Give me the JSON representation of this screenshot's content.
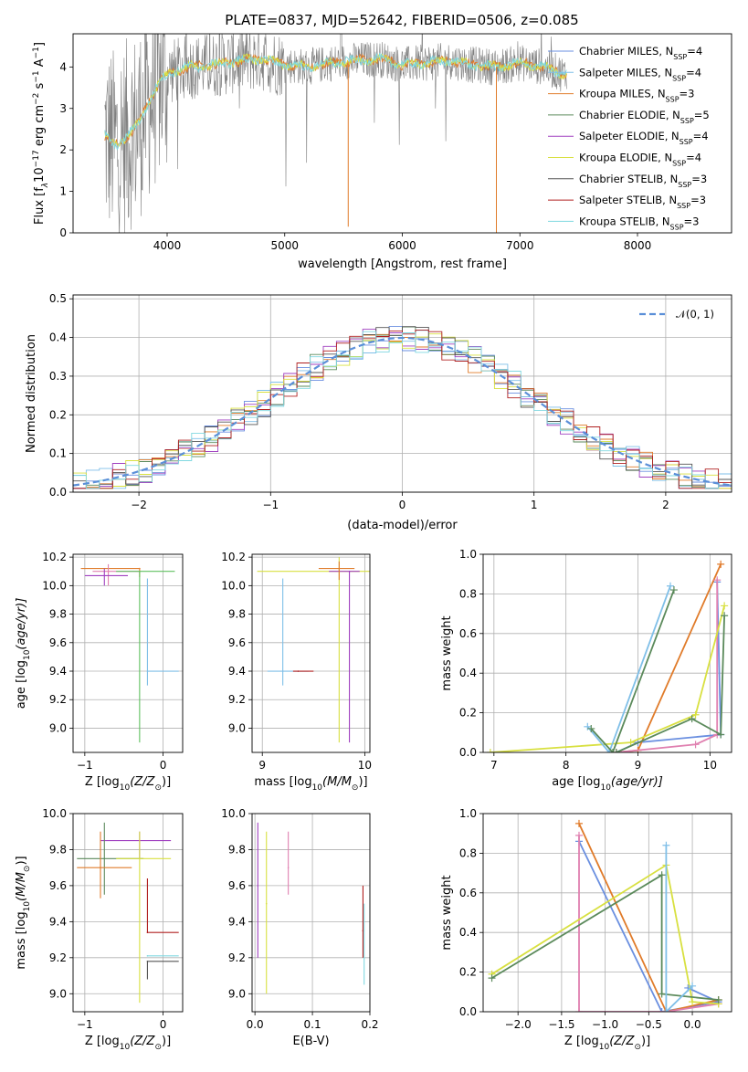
{
  "figure_title": "PLATE=0837, MJD=52642, FIBERID=0506, z=0.085",
  "palette": {
    "chabrier_miles": "#6a8fe0",
    "salpeter_miles": "#7fbfe8",
    "kroupa_miles": "#e07b2a",
    "chabrier_elodie": "#5b8a5b",
    "salpeter_elodie": "#a040c0",
    "kroupa_elodie": "#d8e040",
    "chabrier_stelib": "#555555",
    "salpeter_stelib": "#b02020",
    "kroupa_stelib": "#80d8e0",
    "data_grey": "#808080",
    "gaussian": "#5b8fd8",
    "pink": "#e080b0",
    "green2": "#60c060",
    "grid": "#b0b0b0"
  },
  "chart_data": [
    {
      "id": "spectrum",
      "type": "line",
      "title": "PLATE=0837, MJD=52642, FIBERID=0506, z=0.085",
      "xlabel": "wavelength [Angstrom, rest frame]",
      "ylabel_main": "Flux [f",
      "ylabel_sub_lambda": "λ",
      "ylabel_rest": "10",
      "ylabel_exp": "−17",
      "ylabel_units": " erg cm",
      "ylabel_exp2": "−2",
      "ylabel_s": " s",
      "ylabel_exp3": "−1",
      "ylabel_A": " A",
      "ylabel_exp4": "−1",
      "ylabel_close": "]",
      "xlim": [
        3200,
        8800
      ],
      "ylim": [
        0,
        4.8
      ],
      "xticks": [
        4000,
        5000,
        6000,
        7000,
        8000
      ],
      "yticks": [
        0,
        1,
        2,
        3,
        4
      ],
      "continuum": {
        "x": [
          3450,
          3550,
          3650,
          3750,
          3850,
          3950,
          4050,
          4200,
          4400,
          4600,
          4800,
          5000,
          5200,
          5400,
          5600,
          5800,
          6000,
          6200,
          6400,
          6600,
          6800,
          7000,
          7200,
          7400
        ],
        "y": [
          2.4,
          2.1,
          2.3,
          2.6,
          3.2,
          3.7,
          3.9,
          4.0,
          4.05,
          4.15,
          4.2,
          4.05,
          4.0,
          4.1,
          4.15,
          4.2,
          4.05,
          4.1,
          4.15,
          4.05,
          4.0,
          4.1,
          4.0,
          3.8
        ]
      },
      "legend": [
        {
          "name": "Chabrier MILES, N",
          "sub": "SSP",
          "tail": "=4",
          "color_key": "chabrier_miles"
        },
        {
          "name": "Salpeter MILES, N",
          "sub": "SSP",
          "tail": "=4",
          "color_key": "salpeter_miles"
        },
        {
          "name": "Kroupa MILES, N",
          "sub": "SSP",
          "tail": "=3",
          "color_key": "kroupa_miles"
        },
        {
          "name": "Chabrier ELODIE, N",
          "sub": "SSP",
          "tail": "=5",
          "color_key": "chabrier_elodie"
        },
        {
          "name": "Salpeter ELODIE, N",
          "sub": "SSP",
          "tail": "=4",
          "color_key": "salpeter_elodie"
        },
        {
          "name": "Kroupa ELODIE, N",
          "sub": "SSP",
          "tail": "=4",
          "color_key": "kroupa_elodie"
        },
        {
          "name": "Chabrier STELIB, N",
          "sub": "SSP",
          "tail": "=3",
          "color_key": "chabrier_stelib"
        },
        {
          "name": "Salpeter STELIB, N",
          "sub": "SSP",
          "tail": "=3",
          "color_key": "salpeter_stelib"
        },
        {
          "name": "Kroupa STELIB, N",
          "sub": "SSP",
          "tail": "=3",
          "color_key": "kroupa_stelib"
        }
      ]
    },
    {
      "id": "residuals",
      "type": "line",
      "xlabel": "(data-model)/error",
      "ylabel": "Normed distribution",
      "xlim": [
        -2.5,
        2.5
      ],
      "ylim": [
        0,
        0.51
      ],
      "xticks": [
        -2,
        -1,
        0,
        1,
        2
      ],
      "xtick_labels": [
        "−2",
        "−1",
        "0",
        "1",
        "2"
      ],
      "yticks": [
        0.0,
        0.1,
        0.2,
        0.3,
        0.4,
        0.5
      ],
      "ytick_labels": [
        "0.0",
        "0.1",
        "0.2",
        "0.3",
        "0.4",
        "0.5"
      ],
      "grid": true,
      "legend_label": "𝒩(0, 1)",
      "legend_position": "top-right",
      "hist_bin_width": 0.1
    },
    {
      "id": "age_vs_Z",
      "type": "scatter",
      "xlabel": "Z [log",
      "xlabel_sub": "10",
      "xlabel_rest": "(Z/Z",
      "xlabel_sun": "⊙",
      "xlabel_close": ")]",
      "ylabel": "age  [log",
      "ylabel_sub": "10",
      "ylabel_rest": "(age/yr)]",
      "xlim": [
        -1.15,
        0.25
      ],
      "ylim": [
        8.83,
        10.22
      ],
      "xticks": [
        -1,
        0
      ],
      "xtick_labels": [
        "−1",
        "0"
      ],
      "yticks": [
        9.0,
        9.2,
        9.4,
        9.6,
        9.8,
        10.0,
        10.2
      ],
      "ytick_labels": [
        "9.0",
        "9.2",
        "9.4",
        "9.6",
        "9.8",
        "10.0",
        "10.2"
      ],
      "points": [
        {
          "x": -0.3,
          "y": 10.12,
          "xerr": [
            0.75,
            0.0
          ],
          "yerr": [
            0.06,
            0.0
          ],
          "color_key": "kroupa_miles"
        },
        {
          "x": -0.7,
          "y": 10.1,
          "xerr": [
            0.2,
            0.4
          ],
          "yerr": [
            0.1,
            0.05
          ],
          "color_key": "pink"
        },
        {
          "x": -0.3,
          "y": 10.1,
          "xerr": [
            0.3,
            0.45
          ],
          "yerr": [
            1.2,
            0.0
          ],
          "color_key": "green2"
        },
        {
          "x": -0.2,
          "y": 9.4,
          "xerr": [
            0.0,
            0.4
          ],
          "yerr": [
            0.1,
            0.65
          ],
          "color_key": "salpeter_miles"
        },
        {
          "x": -0.75,
          "y": 10.07,
          "xerr": [
            0.25,
            0.3
          ],
          "yerr": [
            0.07,
            0.05
          ],
          "color_key": "salpeter_elodie"
        }
      ]
    },
    {
      "id": "age_vs_mass",
      "type": "scatter",
      "xlabel": "mass [log",
      "xlabel_sub": "10",
      "xlabel_rest": "(M/M",
      "xlabel_sun": "⊙",
      "xlabel_close": ")]",
      "xlim": [
        8.9,
        10.05
      ],
      "ylim": [
        8.83,
        10.22
      ],
      "xticks": [
        9,
        10
      ],
      "xtick_labels": [
        "9",
        "10"
      ],
      "yticks": [
        9.0,
        9.2,
        9.4,
        9.6,
        9.8,
        10.0,
        10.2
      ],
      "ytick_labels": [
        "9.0",
        "9.2",
        "9.4",
        "9.6",
        "9.8",
        "10.0",
        "10.2"
      ],
      "points": [
        {
          "x": 9.2,
          "y": 9.4,
          "xerr": [
            0.15,
            0.25
          ],
          "yerr": [
            0.1,
            0.65
          ],
          "color_key": "salpeter_miles"
        },
        {
          "x": 9.35,
          "y": 9.4,
          "xerr": [
            0.05,
            0.15
          ],
          "yerr": [
            0.0,
            0.0
          ],
          "color_key": "salpeter_stelib"
        },
        {
          "x": 9.75,
          "y": 10.1,
          "xerr": [
            0.8,
            0.3
          ],
          "yerr": [
            1.2,
            0.1
          ],
          "color_key": "kroupa_elodie"
        },
        {
          "x": 9.85,
          "y": 10.1,
          "xerr": [
            0.2,
            0.1
          ],
          "yerr": [
            1.2,
            0.0
          ],
          "color_key": "salpeter_elodie"
        },
        {
          "x": 9.75,
          "y": 10.12,
          "xerr": [
            0.2,
            0.15
          ],
          "yerr": [
            0.08,
            0.05
          ],
          "color_key": "kroupa_miles"
        }
      ]
    },
    {
      "id": "weight_vs_age",
      "type": "line",
      "xlabel": "age  [log",
      "xlabel_sub": "10",
      "xlabel_rest": "(age/yr)]",
      "ylabel": "mass weight",
      "xlim": [
        6.85,
        10.3
      ],
      "ylim": [
        0,
        1.0
      ],
      "xticks": [
        7,
        8,
        9,
        10
      ],
      "xtick_labels": [
        "7",
        "8",
        "9",
        "10"
      ],
      "yticks": [
        0.0,
        0.2,
        0.4,
        0.6,
        0.8,
        1.0
      ],
      "ytick_labels": [
        "0.0",
        "0.2",
        "0.4",
        "0.6",
        "0.8",
        "1.0"
      ],
      "series": [
        {
          "color_key": "chabrier_miles",
          "x": [
            8.7,
            9.0,
            10.15,
            10.1
          ],
          "y": [
            0.0,
            0.05,
            0.09,
            0.86
          ]
        },
        {
          "color_key": "kroupa_miles",
          "x": [
            8.7,
            9.0,
            10.15
          ],
          "y": [
            0.0,
            0.01,
            0.95
          ]
        },
        {
          "color_key": "pink",
          "x": [
            8.7,
            9.8,
            10.1,
            10.1
          ],
          "y": [
            0.0,
            0.04,
            0.09,
            0.87
          ]
        },
        {
          "color_key": "kroupa_elodie",
          "x": [
            6.95,
            8.9,
            9.8,
            10.2
          ],
          "y": [
            0.0,
            0.05,
            0.19,
            0.74
          ]
        },
        {
          "color_key": "chabrier_elodie",
          "x": [
            8.7,
            9.75,
            10.15,
            10.2
          ],
          "y": [
            0.0,
            0.17,
            0.09,
            0.69
          ]
        },
        {
          "color_key": "salpeter_miles",
          "x": [
            8.3,
            8.6,
            9.45
          ],
          "y": [
            0.13,
            0.0,
            0.84
          ]
        },
        {
          "color_key": "chabrier_elodie",
          "x": [
            8.35,
            8.65,
            9.5
          ],
          "y": [
            0.12,
            0.0,
            0.82
          ]
        }
      ]
    },
    {
      "id": "mass_vs_Z",
      "type": "scatter",
      "xlabel": "Z [log",
      "xlabel_sub": "10",
      "xlabel_rest": "(Z/Z",
      "xlabel_sun": "⊙",
      "xlabel_close": ")]",
      "ylabel": "mass [log",
      "ylabel_sub": "10",
      "ylabel_rest": "(M/M",
      "ylabel_sun": "⊙",
      "ylabel_close": ")]",
      "xlim": [
        -1.15,
        0.25
      ],
      "ylim": [
        8.9,
        10.0
      ],
      "xticks": [
        -1,
        0
      ],
      "xtick_labels": [
        "−1",
        "0"
      ],
      "yticks": [
        9.0,
        9.2,
        9.4,
        9.6,
        9.8,
        10.0
      ],
      "ytick_labels": [
        "9.0",
        "9.2",
        "9.4",
        "9.6",
        "9.8",
        "10.0"
      ],
      "points": [
        {
          "x": -0.3,
          "y": 9.85,
          "xerr": [
            0.5,
            0.4
          ],
          "yerr": [
            0.1,
            0.05
          ],
          "color_key": "salpeter_elodie"
        },
        {
          "x": -0.75,
          "y": 9.75,
          "xerr": [
            0.35,
            0.5
          ],
          "yerr": [
            0.2,
            0.2
          ],
          "color_key": "chabrier_elodie"
        },
        {
          "x": -0.3,
          "y": 9.75,
          "xerr": [
            0.3,
            0.4
          ],
          "yerr": [
            0.8,
            0.15
          ],
          "color_key": "kroupa_elodie"
        },
        {
          "x": -0.8,
          "y": 9.7,
          "xerr": [
            0.3,
            0.4
          ],
          "yerr": [
            0.17,
            0.2
          ],
          "color_key": "kroupa_miles"
        },
        {
          "x": -0.2,
          "y": 9.34,
          "xerr": [
            0.0,
            0.4
          ],
          "yerr": [
            0.0,
            0.3
          ],
          "color_key": "salpeter_stelib"
        },
        {
          "x": -0.2,
          "y": 9.21,
          "xerr": [
            0.0,
            0.4
          ],
          "yerr": [
            0.0,
            0.0
          ],
          "color_key": "kroupa_stelib"
        },
        {
          "x": -0.2,
          "y": 9.18,
          "xerr": [
            0.0,
            0.4
          ],
          "yerr": [
            0.1,
            0.0
          ],
          "color_key": "chabrier_stelib"
        }
      ]
    },
    {
      "id": "mass_vs_ebv",
      "type": "scatter",
      "xlabel": "E(B-V)",
      "xlim": [
        -0.005,
        0.2
      ],
      "ylim": [
        8.9,
        10.0
      ],
      "xticks": [
        0.0,
        0.1,
        0.2
      ],
      "xtick_labels": [
        "0.0",
        "0.1",
        "0.2"
      ],
      "yticks": [
        9.0,
        9.2,
        9.4,
        9.6,
        9.8,
        10.0
      ],
      "ytick_labels": [
        "9.0",
        "9.2",
        "9.4",
        "9.6",
        "9.8",
        "10.0"
      ],
      "points": [
        {
          "x": 0.005,
          "y": 9.6,
          "yerr": [
            0.4,
            0.35
          ],
          "color_key": "salpeter_elodie"
        },
        {
          "x": 0.02,
          "y": 9.5,
          "yerr": [
            0.5,
            0.4
          ],
          "color_key": "kroupa_elodie"
        },
        {
          "x": 0.058,
          "y": 9.7,
          "yerr": [
            0.15,
            0.2
          ],
          "color_key": "pink"
        },
        {
          "x": 0.188,
          "y": 9.35,
          "yerr": [
            0.15,
            0.25
          ],
          "color_key": "salpeter_stelib"
        },
        {
          "x": 0.19,
          "y": 9.2,
          "yerr": [
            0.15,
            0.3
          ],
          "color_key": "kroupa_stelib"
        }
      ]
    },
    {
      "id": "weight_vs_Z",
      "type": "line",
      "xlabel": "Z [log",
      "xlabel_sub": "10",
      "xlabel_rest": "(Z/Z",
      "xlabel_sun": "⊙",
      "xlabel_close": ")]",
      "ylabel": "mass weight",
      "xlim": [
        -2.4,
        0.45
      ],
      "ylim": [
        0,
        1.0
      ],
      "xticks": [
        -2.0,
        -1.5,
        -1.0,
        -0.5,
        0.0
      ],
      "xtick_labels": [
        "−2.0",
        "−1.5",
        "−1.0",
        "−0.5",
        "0.0"
      ],
      "yticks": [
        0.0,
        0.2,
        0.4,
        0.6,
        0.8,
        1.0
      ],
      "ytick_labels": [
        "0.0",
        "0.2",
        "0.4",
        "0.6",
        "0.8",
        "1.0"
      ],
      "series": [
        {
          "color_key": "chabrier_miles",
          "x": [
            -1.3,
            -0.35,
            0.3,
            -0.05
          ],
          "y": [
            0.86,
            0.0,
            0.05,
            0.12
          ]
        },
        {
          "color_key": "kroupa_miles",
          "x": [
            -1.3,
            -0.3,
            0.3
          ],
          "y": [
            0.95,
            0.0,
            0.06
          ]
        },
        {
          "color_key": "pink",
          "x": [
            -1.3,
            -1.3,
            -0.3,
            0.3
          ],
          "y": [
            0.89,
            0.0,
            0.0,
            0.04
          ]
        },
        {
          "color_key": "kroupa_elodie",
          "x": [
            -2.3,
            -0.3,
            0.0,
            0.3
          ],
          "y": [
            0.19,
            0.74,
            0.05,
            0.04
          ]
        },
        {
          "color_key": "chabrier_elodie",
          "x": [
            -2.3,
            -0.35,
            -0.35,
            0.3
          ],
          "y": [
            0.17,
            0.69,
            0.09,
            0.06
          ]
        },
        {
          "color_key": "salpeter_miles",
          "x": [
            -0.3,
            -0.3,
            0.0
          ],
          "y": [
            0.84,
            0.0,
            0.13
          ]
        }
      ]
    }
  ]
}
